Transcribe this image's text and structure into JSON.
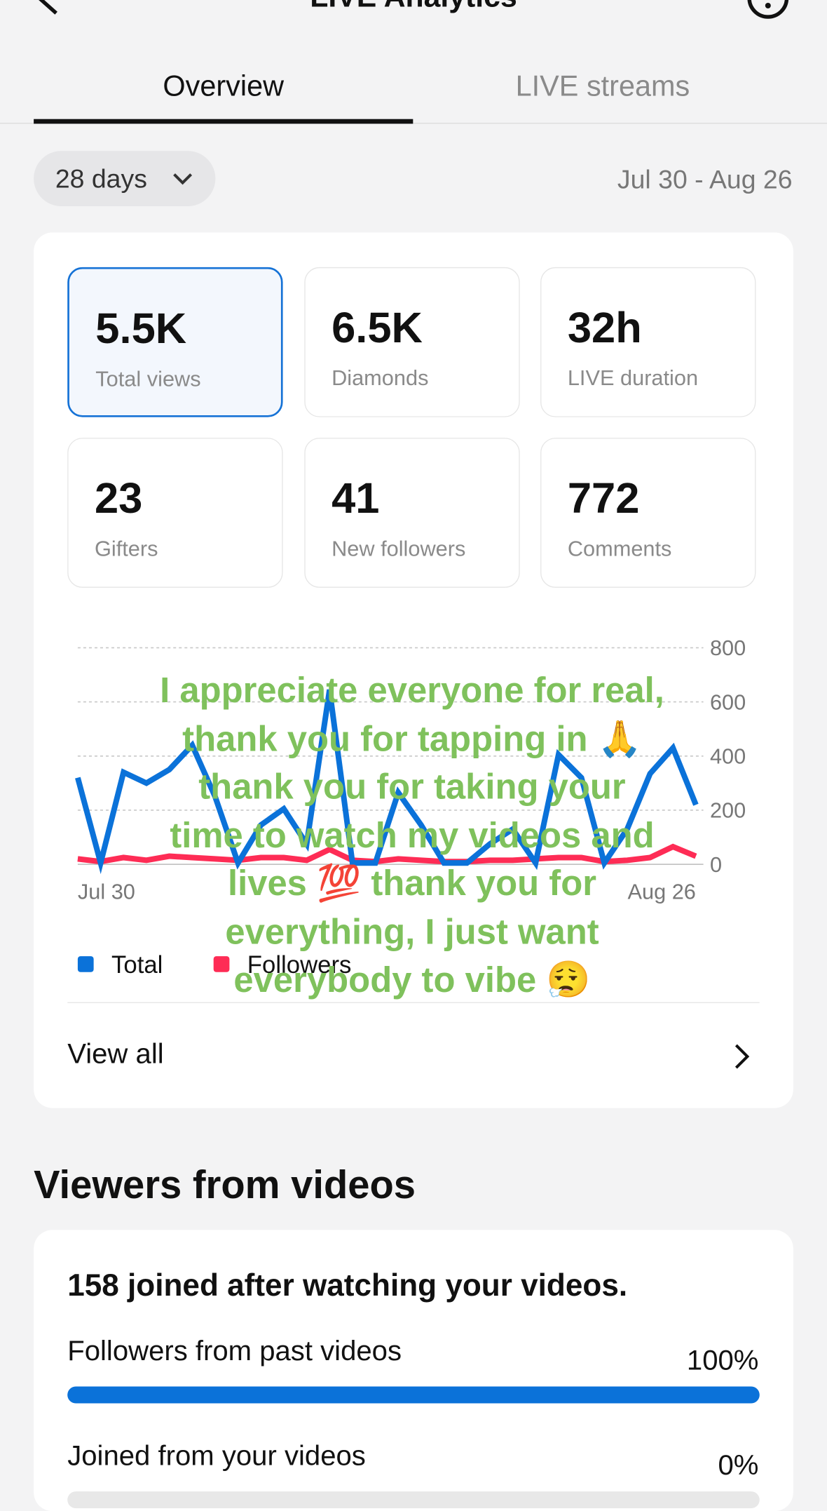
{
  "header": {
    "title": "LIVE Analytics"
  },
  "tabs": [
    "Overview",
    "LIVE streams"
  ],
  "range": {
    "button": "28 days",
    "dates": "Jul 30 - Aug 26"
  },
  "metrics": [
    {
      "value": "5.5K",
      "label": "Total views"
    },
    {
      "value": "6.5K",
      "label": "Diamonds"
    },
    {
      "value": "32h",
      "label": "LIVE duration"
    },
    {
      "value": "23",
      "label": "Gifters"
    },
    {
      "value": "41",
      "label": "New followers"
    },
    {
      "value": "772",
      "label": "Comments"
    }
  ],
  "chart_data": {
    "type": "line",
    "categories": [
      "Jul 30",
      null,
      null,
      null,
      null,
      null,
      null,
      null,
      null,
      null,
      null,
      null,
      null,
      null,
      null,
      null,
      null,
      null,
      null,
      null,
      null,
      null,
      null,
      null,
      null,
      null,
      null,
      "Aug 26"
    ],
    "series": [
      {
        "name": "Total",
        "color": "#0b72d9",
        "values": [
          320,
          5,
          340,
          300,
          350,
          440,
          250,
          5,
          145,
          205,
          75,
          645,
          5,
          5,
          265,
          145,
          5,
          5,
          75,
          130,
          5,
          405,
          320,
          5,
          130,
          335,
          430,
          220
        ]
      },
      {
        "name": "Followers",
        "color": "#fe2c55",
        "values": [
          20,
          10,
          25,
          15,
          30,
          25,
          20,
          15,
          25,
          25,
          15,
          55,
          15,
          10,
          20,
          15,
          10,
          10,
          15,
          15,
          20,
          25,
          25,
          10,
          15,
          25,
          65,
          30
        ]
      }
    ],
    "ylim": [
      0,
      800
    ],
    "yticks": [
      0,
      200,
      400,
      600,
      800
    ],
    "grid": true,
    "legend": "bottom-left"
  },
  "overlay_text": "I appreciate everyone for real, thank you for tapping in 🙏 thank you for taking your time to watch my videos and lives 💯 thank you for everything, I just want everybody to vibe 😮‍💨",
  "view_all": "View all",
  "section": {
    "title": "Viewers from videos",
    "summary": "158 joined after watching your videos.",
    "rows": [
      {
        "label": "Followers from past videos",
        "value": {
          "value": 100,
          "label": "100%"
        }
      },
      {
        "label": "Joined from your videos",
        "value": {
          "value": 0,
          "label": "0%"
        }
      }
    ]
  }
}
